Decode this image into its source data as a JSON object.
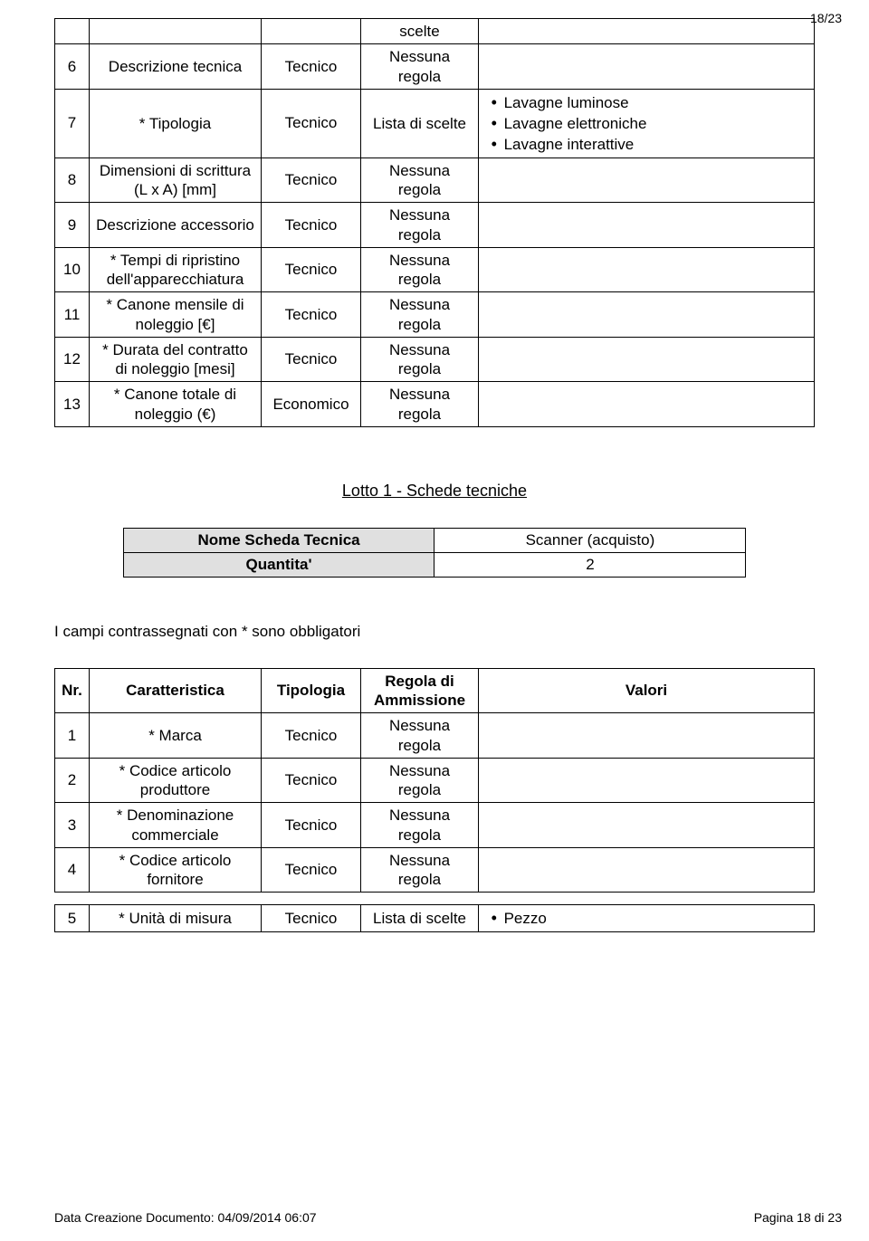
{
  "page_indicator": "18/23",
  "table1": {
    "rows": [
      {
        "nr": "",
        "car": "",
        "tip": "",
        "reg": "scelte",
        "val": []
      },
      {
        "nr": "6",
        "car": "Descrizione tecnica",
        "tip": "Tecnico",
        "reg": "Nessuna regola",
        "val": []
      },
      {
        "nr": "7",
        "car": "* Tipologia",
        "tip": "Tecnico",
        "reg": "Lista di scelte",
        "val": [
          "Lavagne luminose",
          "Lavagne elettroniche",
          "Lavagne interattive"
        ]
      },
      {
        "nr": "8",
        "car": "Dimensioni di scrittura (L x A) [mm]",
        "tip": "Tecnico",
        "reg": "Nessuna regola",
        "val": []
      },
      {
        "nr": "9",
        "car": "Descrizione accessorio",
        "tip": "Tecnico",
        "reg": "Nessuna regola",
        "val": []
      },
      {
        "nr": "10",
        "car": "* Tempi di ripristino dell'apparecchiatura",
        "tip": "Tecnico",
        "reg": "Nessuna regola",
        "val": []
      },
      {
        "nr": "11",
        "car": "* Canone mensile di noleggio [€]",
        "tip": "Tecnico",
        "reg": "Nessuna regola",
        "val": []
      },
      {
        "nr": "12",
        "car": "* Durata del contratto di noleggio [mesi]",
        "tip": "Tecnico",
        "reg": "Nessuna regola",
        "val": []
      },
      {
        "nr": "13",
        "car": "* Canone totale di noleggio (€)",
        "tip": "Economico",
        "reg": "Nessuna regola",
        "val": []
      }
    ]
  },
  "section_title": "Lotto 1 - Schede tecniche",
  "summary": {
    "r1_label": "Nome Scheda Tecnica",
    "r1_value": "Scanner (acquisto)",
    "r2_label": "Quantita'",
    "r2_value": "2"
  },
  "mandatory_note": "I campi contrassegnati con * sono obbligatori",
  "table2": {
    "head": {
      "nr": "Nr.",
      "car": "Caratteristica",
      "tip": "Tipologia",
      "reg": "Regola di Ammissione",
      "val": "Valori"
    },
    "rows": [
      {
        "nr": "1",
        "car": "* Marca",
        "tip": "Tecnico",
        "reg": "Nessuna regola",
        "val": []
      },
      {
        "nr": "2",
        "car": "* Codice articolo produttore",
        "tip": "Tecnico",
        "reg": "Nessuna regola",
        "val": []
      },
      {
        "nr": "3",
        "car": "* Denominazione commerciale",
        "tip": "Tecnico",
        "reg": "Nessuna regola",
        "val": []
      },
      {
        "nr": "4",
        "car": "* Codice articolo fornitore",
        "tip": "Tecnico",
        "reg": "Nessuna regola",
        "val": []
      },
      {
        "nr": "5",
        "car": "* Unità di misura",
        "tip": "Tecnico",
        "reg": "Lista di scelte",
        "val": [
          "Pezzo"
        ],
        "spaced": true
      }
    ]
  },
  "footer": {
    "left": "Data Creazione Documento: 04/09/2014 06:07",
    "right": "Pagina 18 di 23"
  },
  "colors": {
    "grey_bg": "#e0e0e0",
    "border": "#000000",
    "text": "#000000",
    "bg": "#ffffff"
  }
}
